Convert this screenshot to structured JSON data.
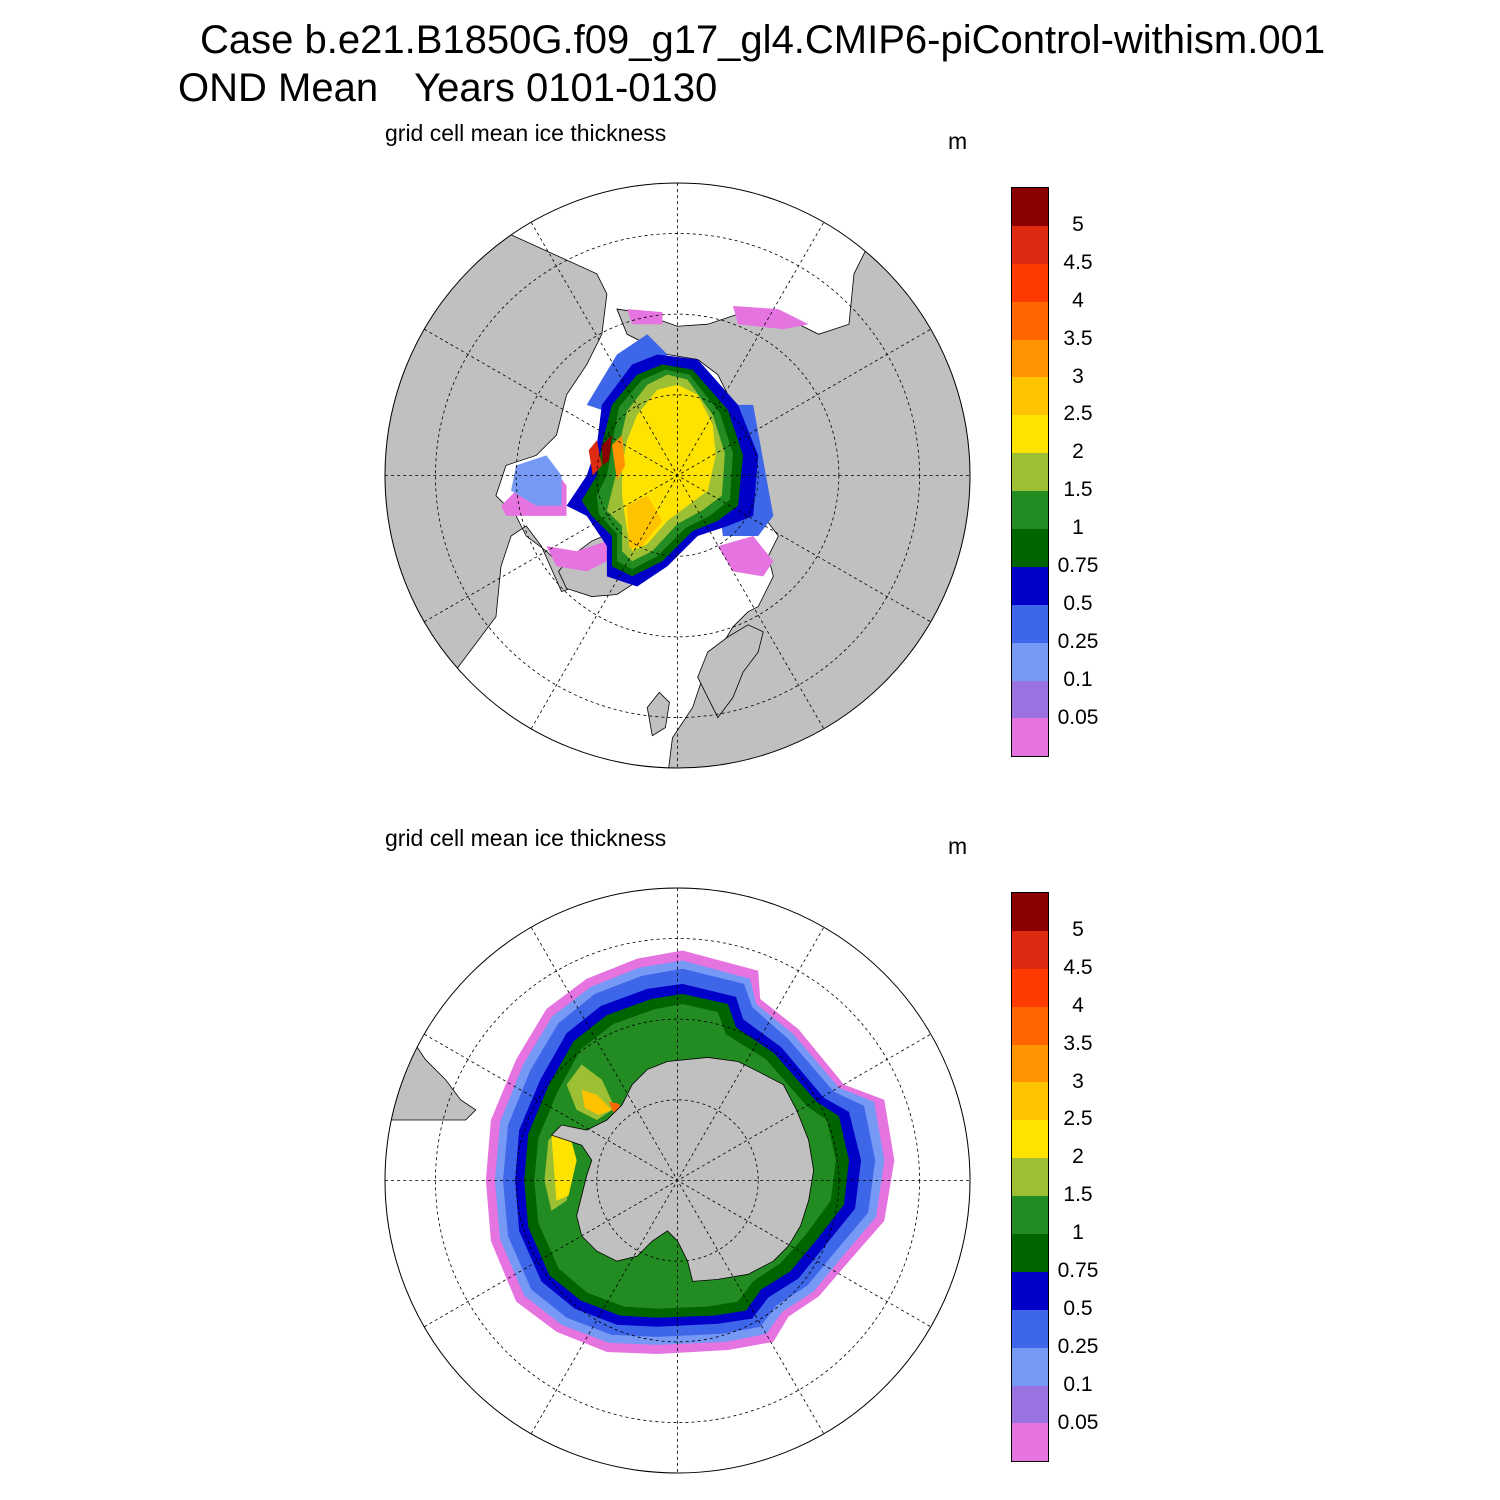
{
  "header": {
    "title": "Case b.e21.B1850G.f09_g17_gl4.CMIP6-piControl-withism.001",
    "season": "OND Mean",
    "years": "Years 0101-0130"
  },
  "panels": [
    {
      "id": "north",
      "hemisphere": "Arctic",
      "label": "grid cell mean ice thickness",
      "unit": "m"
    },
    {
      "id": "south",
      "hemisphere": "Antarctic",
      "label": "grid cell mean ice thickness",
      "unit": "m"
    }
  ],
  "colorbar": {
    "levels": [
      "5",
      "4.5",
      "4",
      "3.5",
      "3",
      "2.5",
      "2",
      "1.5",
      "1",
      "0.75",
      "0.5",
      "0.25",
      "0.1",
      "0.05"
    ],
    "colors": [
      "#8b0000",
      "#dd2a10",
      "#ff3a00",
      "#ff6600",
      "#ff9400",
      "#ffc300",
      "#ffe300",
      "#9dbf34",
      "#228b22",
      "#006400",
      "#0000c8",
      "#3e66e8",
      "#7599f5",
      "#9a73e0",
      "#e573e0"
    ]
  },
  "map_style": {
    "land": "#c0c0c0",
    "ocean": "#ffffff",
    "grid_line": "dashed"
  }
}
